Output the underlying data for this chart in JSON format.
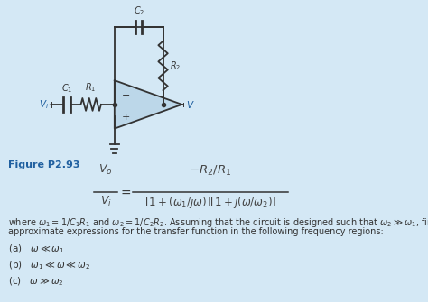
{
  "background_color": "#d4e8f5",
  "figure_label": "Figure P2.93",
  "lw": 1.3,
  "circuit_color": "#333333",
  "blue_color": "#2060a0",
  "label_color": "#4472a8"
}
